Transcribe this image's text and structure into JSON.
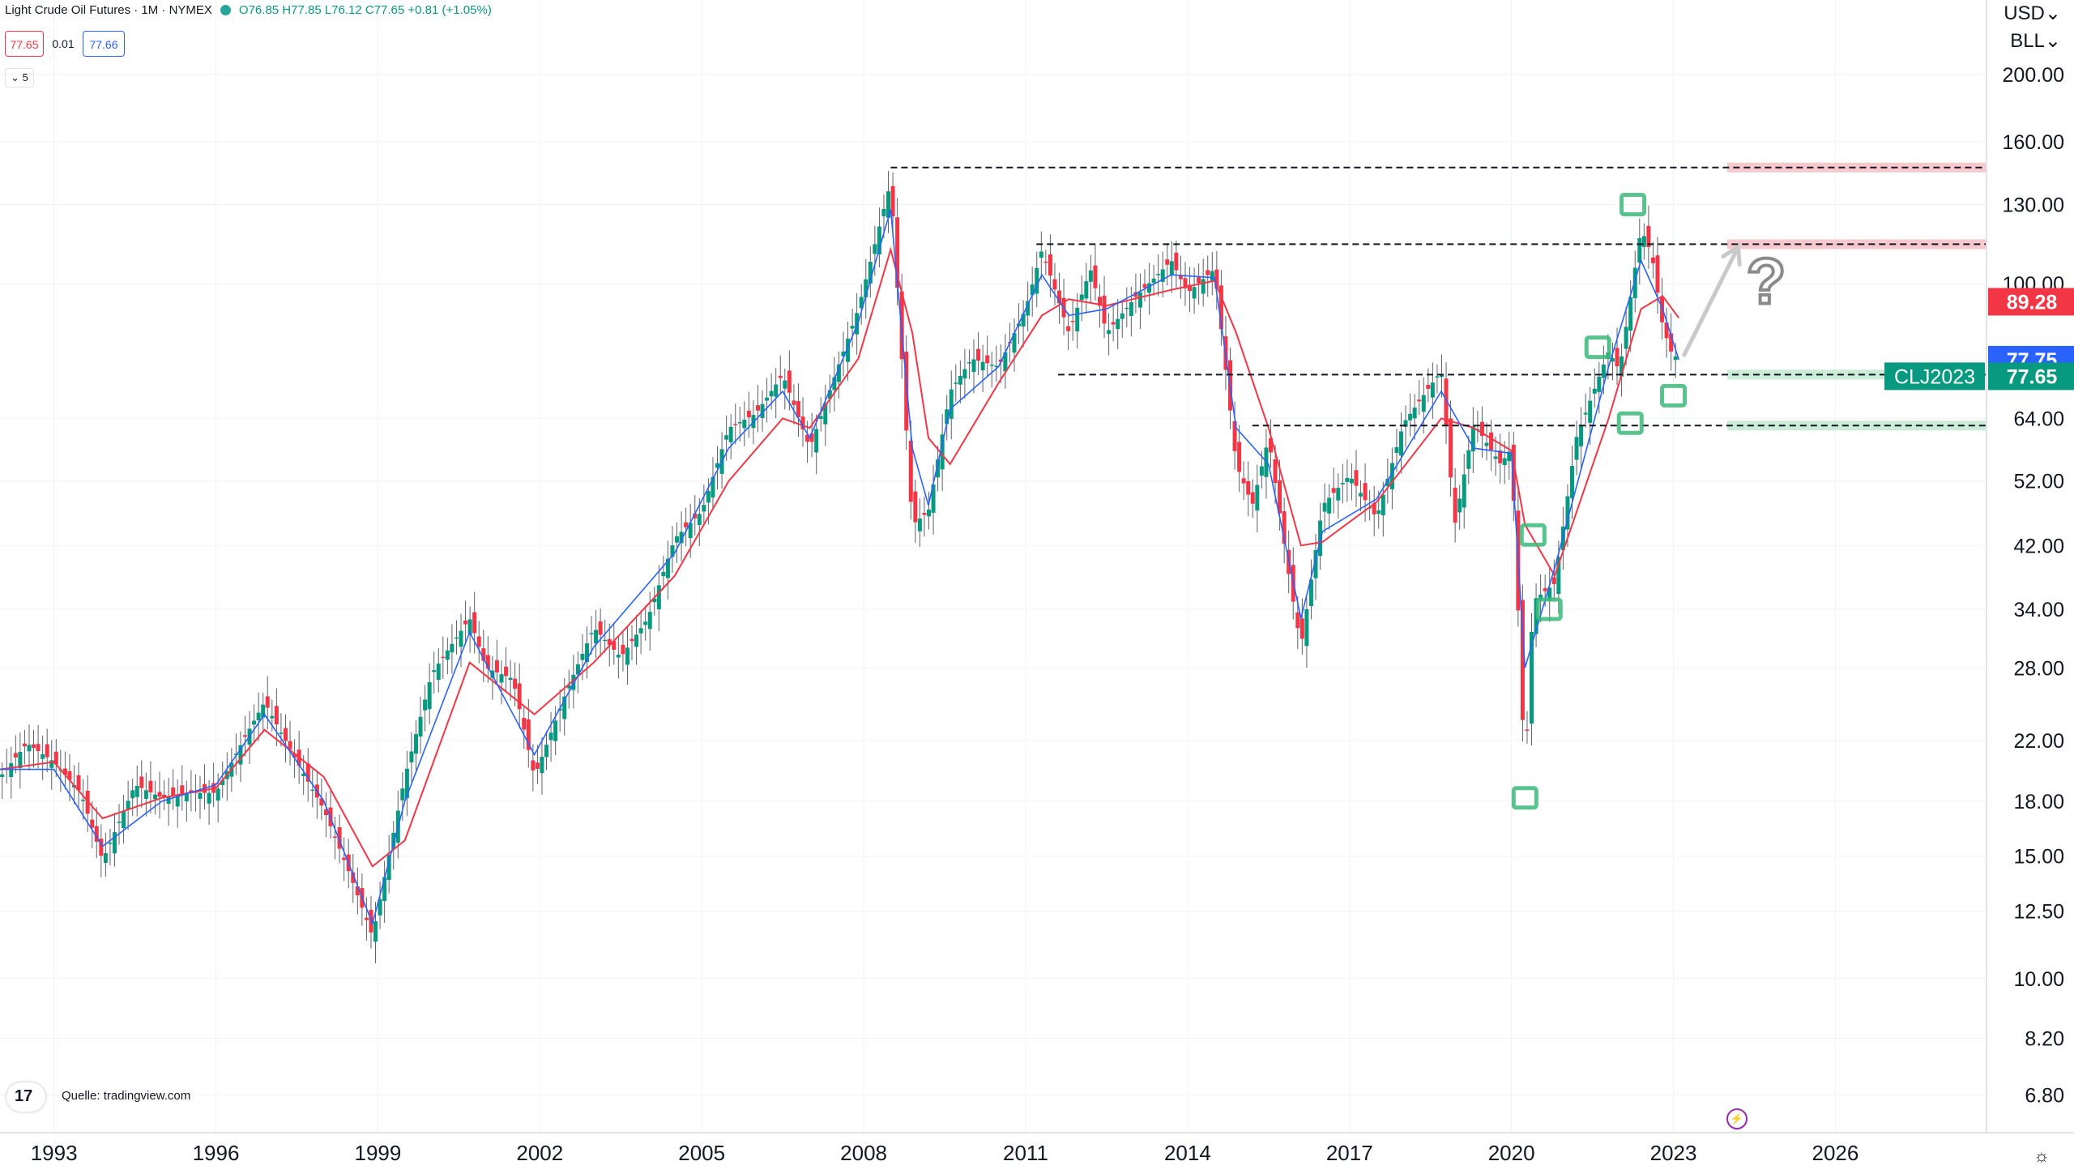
{
  "header": {
    "title": "Light Crude Oil Futures · 1M · NYMEX",
    "ohlc": "O76.85 H77.85 L76.12 C77.65 +0.81 (+1.05%)",
    "bid": "77.65",
    "spread": "0.01",
    "ask": "77.66",
    "collapse": "⌄ 5"
  },
  "axis": {
    "currency": "USD⌄",
    "unit": "BLL⌄"
  },
  "footer": {
    "source": "Quelle: tradingview.com",
    "logo": "17"
  },
  "colors": {
    "up": "#089981",
    "down": "#f23645",
    "ma_fast": "#2962ff",
    "ma_slow": "#f23645",
    "resistance": "#f4b6bb",
    "support": "#b9e6c9",
    "marker": "#3cb879"
  },
  "chart_data": {
    "type": "candlestick",
    "symbol": "CLJ2023",
    "interval": "1M",
    "yscale": "log",
    "ylim": [
      6.0,
      230.0
    ],
    "xlim": [
      1992.0,
      2028.8
    ],
    "y_ticks": [
      200.0,
      160.0,
      130.0,
      100.0,
      64.0,
      52.0,
      42.0,
      34.0,
      28.0,
      22.0,
      18.0,
      15.0,
      12.5,
      10.0,
      8.2,
      6.8
    ],
    "x_ticks": [
      "1993",
      "1996",
      "1999",
      "2002",
      "2005",
      "2008",
      "2011",
      "2014",
      "2017",
      "2020",
      "2023",
      "2026"
    ],
    "price_path": [
      [
        1992.0,
        19.5
      ],
      [
        1992.5,
        21.8
      ],
      [
        1993.0,
        20.5
      ],
      [
        1993.5,
        18.5
      ],
      [
        1993.9,
        14.8
      ],
      [
        1994.5,
        19.0
      ],
      [
        1995.0,
        18.2
      ],
      [
        1995.5,
        18.5
      ],
      [
        1996.0,
        18.5
      ],
      [
        1996.5,
        22.0
      ],
      [
        1996.9,
        25.0
      ],
      [
        1997.5,
        20.5
      ],
      [
        1998.0,
        17.5
      ],
      [
        1998.5,
        14.0
      ],
      [
        1998.9,
        11.5
      ],
      [
        1999.5,
        19.5
      ],
      [
        2000.0,
        27.5
      ],
      [
        2000.7,
        33.0
      ],
      [
        2001.0,
        28.0
      ],
      [
        2001.5,
        27.0
      ],
      [
        2001.9,
        19.5
      ],
      [
        2002.5,
        26.0
      ],
      [
        2003.0,
        32.0
      ],
      [
        2003.5,
        29.0
      ],
      [
        2004.0,
        33.0
      ],
      [
        2004.5,
        43.0
      ],
      [
        2005.0,
        47.0
      ],
      [
        2005.5,
        62.0
      ],
      [
        2006.0,
        65.0
      ],
      [
        2006.5,
        74.0
      ],
      [
        2007.0,
        58.0
      ],
      [
        2007.5,
        75.0
      ],
      [
        2007.9,
        92.0
      ],
      [
        2008.5,
        140.0
      ],
      [
        2008.9,
        45.0
      ],
      [
        2009.2,
        47.0
      ],
      [
        2009.6,
        70.0
      ],
      [
        2010.0,
        78.0
      ],
      [
        2010.5,
        76.0
      ],
      [
        2011.0,
        92.0
      ],
      [
        2011.3,
        112.0
      ],
      [
        2011.8,
        85.0
      ],
      [
        2012.2,
        105.0
      ],
      [
        2012.5,
        85.0
      ],
      [
        2013.0,
        95.0
      ],
      [
        2013.7,
        108.0
      ],
      [
        2014.0,
        97.0
      ],
      [
        2014.5,
        105.0
      ],
      [
        2014.9,
        55.0
      ],
      [
        2015.2,
        48.0
      ],
      [
        2015.5,
        60.0
      ],
      [
        2015.9,
        37.0
      ],
      [
        2016.1,
        30.0
      ],
      [
        2016.5,
        48.0
      ],
      [
        2017.0,
        53.0
      ],
      [
        2017.5,
        46.0
      ],
      [
        2018.0,
        63.0
      ],
      [
        2018.7,
        75.0
      ],
      [
        2018.95,
        45.0
      ],
      [
        2019.3,
        63.0
      ],
      [
        2019.8,
        55.0
      ],
      [
        2020.0,
        58.0
      ],
      [
        2020.25,
        19.5
      ],
      [
        2020.4,
        35.0
      ],
      [
        2020.8,
        37.0
      ],
      [
        2021.2,
        60.0
      ],
      [
        2021.8,
        80.0
      ],
      [
        2022.0,
        75.0
      ],
      [
        2022.4,
        120.0
      ],
      [
        2022.6,
        110.0
      ],
      [
        2022.8,
        87.0
      ],
      [
        2022.95,
        80.0
      ],
      [
        2023.1,
        77.65
      ]
    ],
    "ma_fast": [
      [
        1992.0,
        20.0
      ],
      [
        1993.0,
        20.0
      ],
      [
        1993.9,
        15.5
      ],
      [
        1995.0,
        18.0
      ],
      [
        1996.0,
        19.0
      ],
      [
        1996.9,
        24.0
      ],
      [
        1998.0,
        18.0
      ],
      [
        1998.9,
        12.0
      ],
      [
        1999.5,
        18.0
      ],
      [
        2000.7,
        31.5
      ],
      [
        2001.9,
        21.0
      ],
      [
        2003.0,
        30.0
      ],
      [
        2004.5,
        41.0
      ],
      [
        2005.5,
        58.0
      ],
      [
        2006.5,
        70.0
      ],
      [
        2007.0,
        60.0
      ],
      [
        2007.9,
        88.0
      ],
      [
        2008.5,
        128.0
      ],
      [
        2008.9,
        58.0
      ],
      [
        2009.2,
        48.0
      ],
      [
        2009.6,
        66.0
      ],
      [
        2010.5,
        76.0
      ],
      [
        2011.3,
        103.0
      ],
      [
        2011.8,
        90.0
      ],
      [
        2012.5,
        92.0
      ],
      [
        2013.7,
        103.0
      ],
      [
        2014.5,
        102.0
      ],
      [
        2014.9,
        62.0
      ],
      [
        2015.5,
        55.0
      ],
      [
        2016.1,
        33.0
      ],
      [
        2016.5,
        44.0
      ],
      [
        2017.5,
        49.0
      ],
      [
        2018.7,
        70.0
      ],
      [
        2019.3,
        58.0
      ],
      [
        2020.0,
        57.0
      ],
      [
        2020.25,
        28.0
      ],
      [
        2020.8,
        39.0
      ],
      [
        2021.8,
        76.0
      ],
      [
        2022.4,
        108.0
      ],
      [
        2022.8,
        92.0
      ],
      [
        2023.1,
        77.75
      ]
    ],
    "ma_slow": [
      [
        1992.0,
        20.0
      ],
      [
        1993.0,
        20.5
      ],
      [
        1993.9,
        17.0
      ],
      [
        1995.0,
        18.2
      ],
      [
        1996.0,
        18.8
      ],
      [
        1996.9,
        22.8
      ],
      [
        1998.0,
        19.5
      ],
      [
        1998.9,
        14.5
      ],
      [
        1999.5,
        15.8
      ],
      [
        2000.7,
        28.5
      ],
      [
        2001.9,
        24.0
      ],
      [
        2003.0,
        28.5
      ],
      [
        2004.5,
        38.0
      ],
      [
        2005.5,
        52.0
      ],
      [
        2006.5,
        64.0
      ],
      [
        2007.0,
        62.0
      ],
      [
        2007.9,
        78.0
      ],
      [
        2008.5,
        112.0
      ],
      [
        2008.9,
        85.0
      ],
      [
        2009.2,
        60.0
      ],
      [
        2009.6,
        55.0
      ],
      [
        2010.5,
        72.0
      ],
      [
        2011.3,
        90.0
      ],
      [
        2011.8,
        95.0
      ],
      [
        2012.5,
        93.0
      ],
      [
        2013.7,
        98.0
      ],
      [
        2014.5,
        101.0
      ],
      [
        2014.9,
        85.0
      ],
      [
        2015.5,
        62.0
      ],
      [
        2016.1,
        42.0
      ],
      [
        2016.5,
        42.5
      ],
      [
        2017.5,
        48.5
      ],
      [
        2018.7,
        64.0
      ],
      [
        2019.3,
        62.0
      ],
      [
        2020.0,
        57.5
      ],
      [
        2020.25,
        45.0
      ],
      [
        2020.8,
        38.0
      ],
      [
        2021.8,
        64.0
      ],
      [
        2022.4,
        92.0
      ],
      [
        2022.8,
        96.0
      ],
      [
        2023.1,
        89.28
      ]
    ],
    "levels": [
      {
        "y": 147.0,
        "x_start": 2008.5,
        "style": "dashed",
        "zone": "resistance"
      },
      {
        "y": 114.0,
        "x_start": 2011.2,
        "style": "dashed",
        "zone": "resistance"
      },
      {
        "y": 74.0,
        "x_start": 2011.6,
        "style": "dashed",
        "zone": "support"
      },
      {
        "y": 62.5,
        "x_start": 2015.2,
        "style": "dashed",
        "zone": "support"
      }
    ],
    "markers": [
      [
        2022.25,
        130.0
      ],
      [
        2021.6,
        81.0
      ],
      [
        2022.2,
        63.0
      ],
      [
        2023.0,
        69.0
      ],
      [
        2020.4,
        43.5
      ],
      [
        2020.7,
        34.0
      ],
      [
        2020.25,
        18.2
      ]
    ],
    "projection": {
      "from": [
        2023.2,
        79.0
      ],
      "to": [
        2024.2,
        113.0
      ],
      "label": "?"
    },
    "price_labels": [
      {
        "text": "89.28",
        "value": 89.28,
        "series": "ma_slow"
      },
      {
        "text": "77.75",
        "value": 77.75,
        "series": "ma_fast"
      },
      {
        "text": "77.65",
        "value": 77.65,
        "series": "price",
        "symbol": "CLJ2023"
      }
    ]
  }
}
